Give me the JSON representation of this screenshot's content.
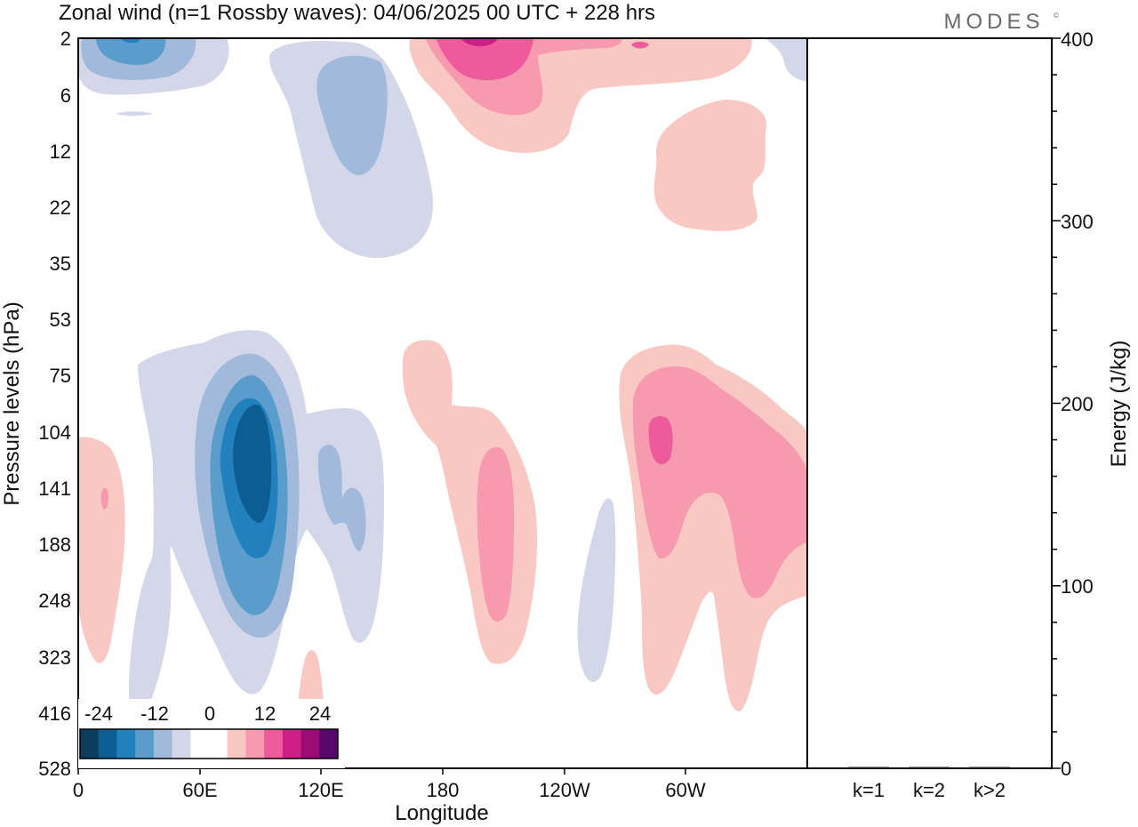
{
  "title": "Zonal wind (n=1 Rossby waves):  04/06/2025  00 UTC  + 228 hrs",
  "brand": "MODES",
  "brand_mark": "©",
  "chart_data": [
    {
      "type": "heatmap",
      "title": "Zonal wind (n=1 Rossby waves):  04/06/2025  00 UTC  + 228 hrs",
      "xlabel": "Longitude",
      "ylabel": "Pressure levels (hPa)",
      "x_ticks": [
        "0",
        "60E",
        "120E",
        "180",
        "120W",
        "60W"
      ],
      "x_tick_values": [
        0,
        60,
        120,
        180,
        240,
        300
      ],
      "xlim": [
        0,
        360
      ],
      "y_ticks": [
        "2",
        "6",
        "12",
        "22",
        "35",
        "53",
        "75",
        "104",
        "141",
        "188",
        "248",
        "323",
        "416",
        "528"
      ],
      "y_axis_inverted": true,
      "colorbar": {
        "tick_labels": [
          "-24",
          "-12",
          "0",
          "12",
          "24"
        ],
        "tick_values": [
          -24,
          -12,
          0,
          12,
          24
        ],
        "levels": [
          -28,
          -24,
          -20,
          -16,
          -12,
          -8,
          -4,
          4,
          8,
          12,
          16,
          20,
          24,
          28
        ],
        "colors": [
          "#0c3c5e",
          "#0b5d92",
          "#2280bd",
          "#5a9dcc",
          "#a1b9da",
          "#d4d6e9",
          "#ffffff",
          "#ffffff",
          "#f9c8c3",
          "#f79ab0",
          "#ee5a9b",
          "#cd1f85",
          "#9a0b73",
          "#59066b"
        ]
      },
      "features": [
        {
          "sign": "negative",
          "center_lon": 85,
          "center_level": "141",
          "min_value": -24
        },
        {
          "sign": "negative",
          "center_lon": 25,
          "center_level": "2",
          "min_value": -20
        },
        {
          "sign": "negative",
          "center_lon": 140,
          "center_level": "12",
          "min_value": -12
        },
        {
          "sign": "negative",
          "center_lon": 130,
          "center_level": "141",
          "min_value": -12
        },
        {
          "sign": "negative",
          "center_lon": 260,
          "center_level": "248",
          "min_value": -8
        },
        {
          "sign": "positive",
          "center_lon": 200,
          "center_level": "2",
          "min_value": 24
        },
        {
          "sign": "positive",
          "center_lon": 200,
          "center_level": "188",
          "min_value": 12
        },
        {
          "sign": "positive",
          "center_lon": 286,
          "center_level": "104",
          "min_value": 16
        },
        {
          "sign": "positive",
          "center_lon": 330,
          "center_level": "141",
          "min_value": 12
        },
        {
          "sign": "positive",
          "center_lon": 315,
          "center_level": "12",
          "min_value": 8
        },
        {
          "sign": "positive",
          "center_lon": 12,
          "center_level": "188",
          "min_value": 8
        },
        {
          "sign": "positive",
          "center_lon": 118,
          "center_level": "416",
          "min_value": 8
        }
      ],
      "grid": false,
      "legend": "bottom-left"
    },
    {
      "type": "bar",
      "categories": [
        "k=1",
        "k=2",
        "k>2"
      ],
      "values": [
        0.5,
        0.5,
        0.5
      ],
      "ylabel": "Energy (J/kg)",
      "y_ticks": [
        "0",
        "100",
        "200",
        "300",
        "400"
      ],
      "ylim": [
        0,
        400
      ]
    }
  ]
}
